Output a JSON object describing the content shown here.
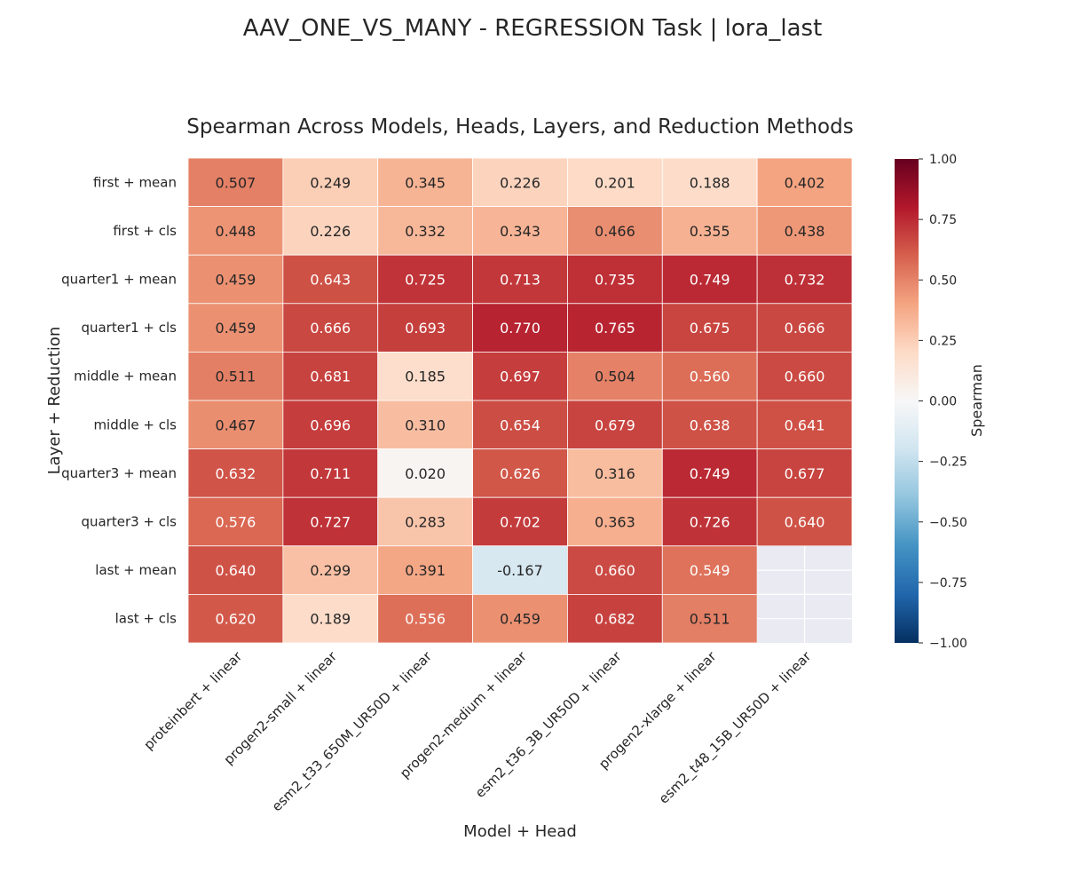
{
  "chart_data": {
    "type": "heatmap",
    "suptitle": "AAV_ONE_VS_MANY - REGRESSION Task | lora_last",
    "title": "Spearman Across Models, Heads, Layers, and Reduction Methods",
    "xlabel": "Model + Head",
    "ylabel": "Layer + Reduction",
    "colorbar_label": "Spearman",
    "colormap": "RdBu_r",
    "vmin": -1.0,
    "vmax": 1.0,
    "colorbar_ticks": [
      "1.00",
      "0.75",
      "0.50",
      "0.25",
      "0.00",
      "−0.25",
      "−0.50",
      "−0.75",
      "−1.00"
    ],
    "colorbar_tick_values": [
      1.0,
      0.75,
      0.5,
      0.25,
      0.0,
      -0.25,
      -0.5,
      -0.75,
      -1.0
    ],
    "missing_color": "#eaeaf2",
    "columns": [
      "proteinbert + linear",
      "progen2-small + linear",
      "esm2_t33_650M_UR50D + linear",
      "progen2-medium + linear",
      "esm2_t36_3B_UR50D + linear",
      "progen2-xlarge + linear",
      "esm2_t48_15B_UR50D + linear"
    ],
    "rows": [
      "first + mean",
      "first + cls",
      "quarter1 + mean",
      "quarter1 + cls",
      "middle + mean",
      "middle + cls",
      "quarter3 + mean",
      "quarter3 + cls",
      "last + mean",
      "last + cls"
    ],
    "values": [
      [
        0.507,
        0.249,
        0.345,
        0.226,
        0.201,
        0.188,
        0.402
      ],
      [
        0.448,
        0.226,
        0.332,
        0.343,
        0.466,
        0.355,
        0.438
      ],
      [
        0.459,
        0.643,
        0.725,
        0.713,
        0.735,
        0.749,
        0.732
      ],
      [
        0.459,
        0.666,
        0.693,
        0.77,
        0.765,
        0.675,
        0.666
      ],
      [
        0.511,
        0.681,
        0.185,
        0.697,
        0.504,
        0.56,
        0.66
      ],
      [
        0.467,
        0.696,
        0.31,
        0.654,
        0.679,
        0.638,
        0.641
      ],
      [
        0.632,
        0.711,
        0.02,
        0.626,
        0.316,
        0.749,
        0.677
      ],
      [
        0.576,
        0.727,
        0.283,
        0.702,
        0.363,
        0.726,
        0.64
      ],
      [
        0.64,
        0.299,
        0.391,
        -0.167,
        0.66,
        0.549,
        null
      ],
      [
        0.62,
        0.189,
        0.556,
        0.459,
        0.682,
        0.511,
        null
      ]
    ]
  }
}
